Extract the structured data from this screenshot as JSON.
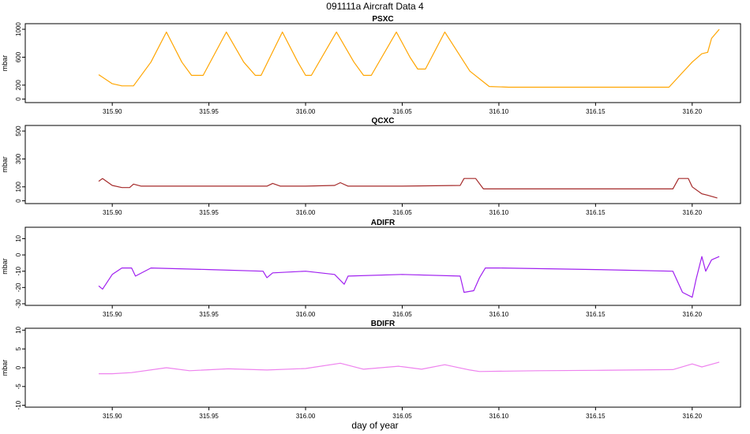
{
  "figure": {
    "title": "091111a   Aircraft Data 4",
    "xlabel": "day of year"
  },
  "chart_data": [
    {
      "type": "line",
      "title": "PSXC",
      "ylabel": "mbar",
      "color": "#FFA500",
      "xlim": [
        315.855,
        316.225
      ],
      "ylim": [
        -50,
        1080
      ],
      "x_ticks": [
        "315.90",
        "315.95",
        "316.00",
        "316.05",
        "316.10",
        "316.15",
        "316.20"
      ],
      "y_ticks": [
        "0",
        "200",
        "600",
        "1000"
      ],
      "x": [
        315.893,
        315.9,
        315.905,
        315.911,
        315.92,
        315.928,
        315.936,
        315.941,
        315.947,
        315.959,
        315.968,
        315.974,
        315.977,
        315.988,
        315.996,
        316.0,
        316.003,
        316.016,
        316.025,
        316.03,
        316.034,
        316.047,
        316.054,
        316.058,
        316.062,
        316.072,
        316.085,
        316.095,
        316.105,
        316.15,
        316.188,
        316.195,
        316.2,
        316.205,
        316.208,
        316.21,
        316.214
      ],
      "values": [
        350,
        220,
        190,
        190,
        530,
        960,
        530,
        340,
        340,
        960,
        530,
        340,
        340,
        960,
        530,
        340,
        340,
        960,
        530,
        340,
        340,
        960,
        600,
        430,
        430,
        960,
        400,
        180,
        170,
        170,
        170,
        380,
        530,
        650,
        670,
        870,
        1000
      ]
    },
    {
      "type": "line",
      "title": "QCXC",
      "ylabel": "mbar",
      "color": "#A52A2A",
      "xlim": [
        315.855,
        316.225
      ],
      "ylim": [
        -20,
        540
      ],
      "x_ticks": [
        "315.90",
        "315.95",
        "316.00",
        "316.05",
        "316.10",
        "316.15",
        "316.20"
      ],
      "y_ticks": [
        "0",
        "100",
        "300",
        "500"
      ],
      "x": [
        315.893,
        315.895,
        315.9,
        315.905,
        315.909,
        315.911,
        315.915,
        315.95,
        315.98,
        315.983,
        315.987,
        316.0,
        316.015,
        316.018,
        316.022,
        316.05,
        316.08,
        316.082,
        316.088,
        316.092,
        316.1,
        316.15,
        316.19,
        316.193,
        316.198,
        316.2,
        316.205,
        316.208,
        316.213
      ],
      "values": [
        140,
        160,
        110,
        95,
        95,
        120,
        105,
        105,
        105,
        125,
        105,
        105,
        110,
        130,
        105,
        105,
        110,
        160,
        160,
        85,
        85,
        85,
        85,
        160,
        160,
        100,
        50,
        40,
        20
      ]
    },
    {
      "type": "line",
      "title": "ADIFR",
      "ylabel": "mbar",
      "color": "#A020F0",
      "xlim": [
        315.855,
        316.225
      ],
      "ylim": [
        -31,
        17
      ],
      "x_ticks": [
        "315.90",
        "315.95",
        "316.00",
        "316.05",
        "316.10",
        "316.15",
        "316.20"
      ],
      "y_ticks": [
        "-30",
        "-20",
        "-10",
        "0",
        "10"
      ],
      "x": [
        315.893,
        315.895,
        315.9,
        315.905,
        315.91,
        315.912,
        315.92,
        315.95,
        315.978,
        315.98,
        315.983,
        316.0,
        316.015,
        316.02,
        316.022,
        316.05,
        316.08,
        316.082,
        316.087,
        316.09,
        316.093,
        316.1,
        316.15,
        316.19,
        316.195,
        316.2,
        316.202,
        316.205,
        316.207,
        316.21,
        316.214
      ],
      "values": [
        -19,
        -21,
        -12,
        -8,
        -8,
        -13,
        -8,
        -9,
        -10,
        -14,
        -11,
        -10,
        -12,
        -18,
        -13,
        -12,
        -13,
        -23,
        -22,
        -14,
        -8,
        -8,
        -9,
        -10,
        -23,
        -26,
        -15,
        -1,
        -10,
        -3,
        -1
      ]
    },
    {
      "type": "line",
      "title": "BDIFR",
      "ylabel": "mbar",
      "color": "#EE82EE",
      "xlim": [
        315.855,
        316.225
      ],
      "ylim": [
        -10.5,
        10.5
      ],
      "x_ticks": [
        "315.90",
        "315.95",
        "316.00",
        "316.05",
        "316.10",
        "316.15",
        "316.20"
      ],
      "y_ticks": [
        "-10",
        "-5",
        "0",
        "5",
        "10"
      ],
      "x": [
        315.893,
        315.9,
        315.91,
        315.928,
        315.94,
        315.96,
        315.98,
        316.0,
        316.018,
        316.03,
        316.048,
        316.06,
        316.072,
        316.085,
        316.09,
        316.12,
        316.15,
        316.19,
        316.2,
        316.205,
        316.214
      ],
      "values": [
        -1.6,
        -1.6,
        -1.3,
        0,
        -0.8,
        -0.3,
        -0.6,
        -0.2,
        1.2,
        -0.4,
        0.4,
        -0.4,
        0.8,
        -0.6,
        -1.0,
        -0.8,
        -0.7,
        -0.5,
        1.0,
        0.2,
        1.5
      ]
    }
  ]
}
